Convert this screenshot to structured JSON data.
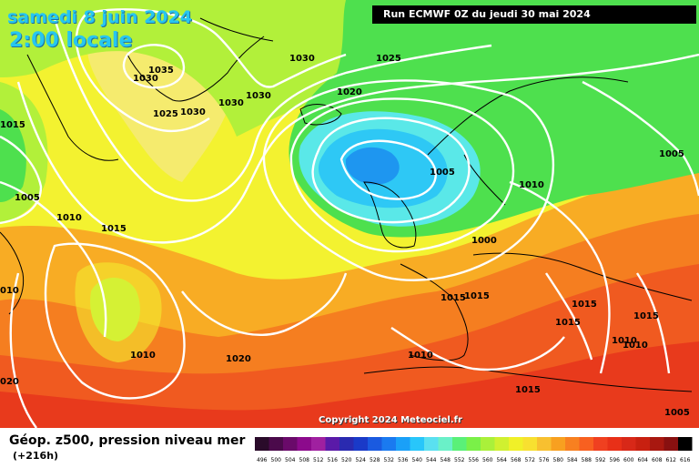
{
  "header": {
    "date": "samedi 8 juin 2024",
    "local_time": "2:00 locale",
    "run_info": "Run ECMWF 0Z du jeudi 30 mai 2024"
  },
  "copyright": "Copyright 2024 Meteociel.fr",
  "footer": {
    "field_title": "Géop. z500, pression niveau mer",
    "lead_time": "(+216h)"
  },
  "legend": {
    "values": [
      "496",
      "500",
      "504",
      "508",
      "512",
      "516",
      "520",
      "524",
      "528",
      "532",
      "536",
      "540",
      "544",
      "548",
      "552",
      "556",
      "560",
      "564",
      "568",
      "572",
      "576",
      "580",
      "584",
      "588",
      "592",
      "596",
      "600",
      "604",
      "608",
      "612",
      "616"
    ],
    "colors": [
      "#2a0b2a",
      "#4b0a4b",
      "#6a0a6a",
      "#8c0a8c",
      "#a020a0",
      "#5a1aa8",
      "#2a2ab0",
      "#1a3ac8",
      "#1a5ae0",
      "#1a7af0",
      "#1aa0f8",
      "#28c6fa",
      "#5ae0f0",
      "#6af0c8",
      "#5af078",
      "#7af048",
      "#aaf03a",
      "#d0f030",
      "#f0f028",
      "#f8e030",
      "#f8c030",
      "#f8a020",
      "#f88020",
      "#f86020",
      "#f04020",
      "#e83018",
      "#d82818",
      "#c82010",
      "#a81810",
      "#881010",
      "#000000"
    ]
  },
  "map": {
    "colors": {
      "ocean_green": "#4ee04e",
      "lime": "#b2f03a",
      "yellow": "#f3f230",
      "pale_yellow": "#f5eb6e",
      "cyan": "#5ae8e8",
      "sky": "#2ec8f5",
      "blue": "#1e96f0",
      "orange": "#f8ac24",
      "dark_orange": "#f57e20",
      "red_orange": "#f05a20",
      "red": "#e83a1c",
      "isobar": "#ffffff",
      "coast": "#000000"
    },
    "isobar_labels": [
      {
        "text": "1035"
      },
      {
        "text": "1030"
      },
      {
        "text": "1030"
      },
      {
        "text": "1030"
      },
      {
        "text": "1030"
      },
      {
        "text": "1030"
      },
      {
        "text": "1025"
      },
      {
        "text": "1025"
      },
      {
        "text": "1020"
      },
      {
        "text": "1015"
      },
      {
        "text": "1005"
      },
      {
        "text": "1010"
      },
      {
        "text": "1015"
      },
      {
        "text": "1005"
      },
      {
        "text": "1010"
      },
      {
        "text": "1000"
      },
      {
        "text": "1005"
      },
      {
        "text": "010"
      },
      {
        "text": "1010"
      },
      {
        "text": "1020"
      },
      {
        "text": "1015"
      },
      {
        "text": "1015"
      },
      {
        "text": "1010"
      },
      {
        "text": "1015"
      },
      {
        "text": "1015"
      },
      {
        "text": "1015"
      },
      {
        "text": "1010"
      },
      {
        "text": "1010"
      },
      {
        "text": "1015"
      },
      {
        "text": "020"
      },
      {
        "text": "1005"
      }
    ]
  }
}
